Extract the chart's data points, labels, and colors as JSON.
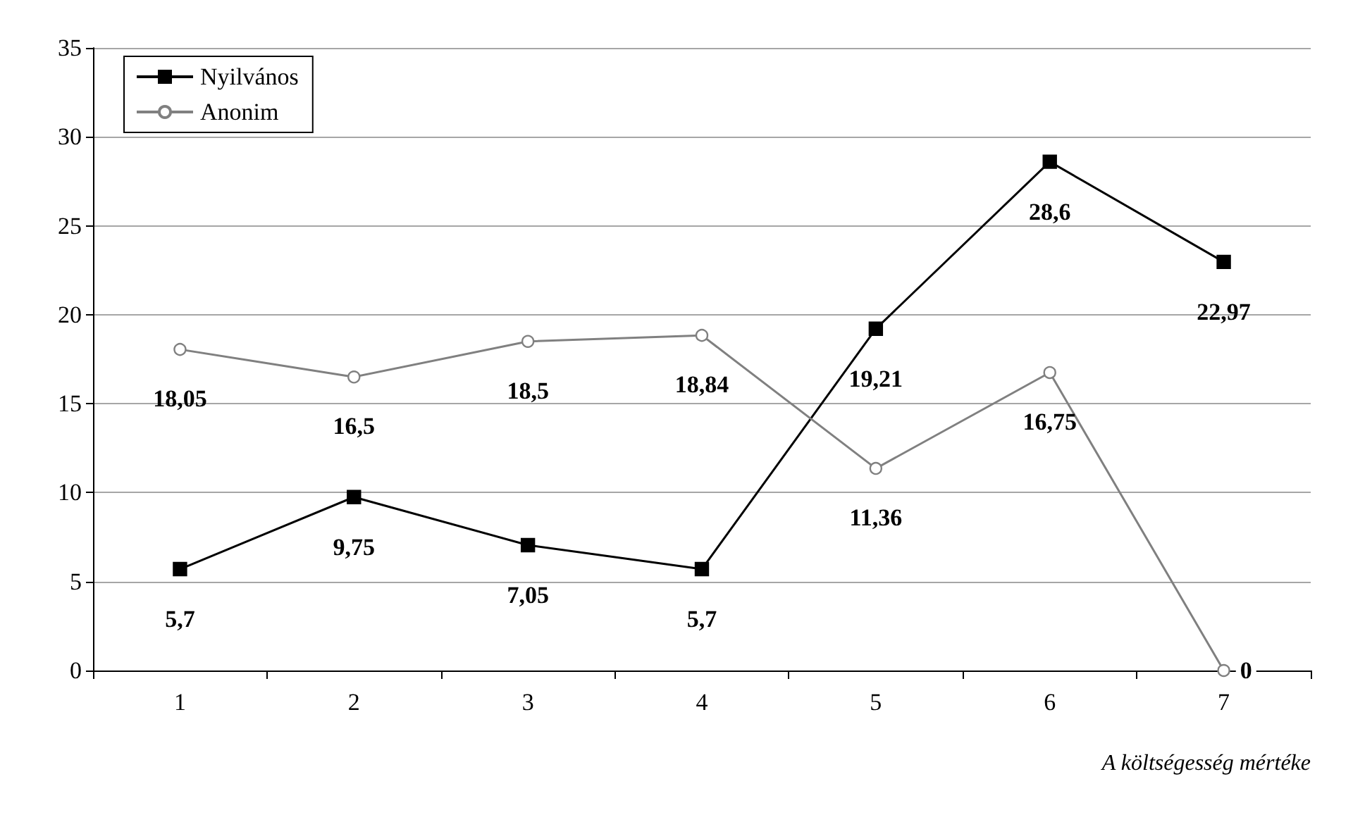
{
  "chart_data": {
    "type": "line",
    "xlabel": "A költségesség mértéke",
    "categories": [
      "1",
      "2",
      "3",
      "4",
      "5",
      "6",
      "7"
    ],
    "series": [
      {
        "name": "Nyilvános",
        "color": "#000000",
        "marker": "square",
        "values": [
          5.7,
          9.75,
          7.05,
          5.7,
          19.21,
          28.6,
          22.97
        ],
        "value_labels": [
          "5,7",
          "9,75",
          "7,05",
          "5,7",
          "19,21",
          "28,6",
          "22,97"
        ]
      },
      {
        "name": "Anonim",
        "color": "#808080",
        "marker": "circle",
        "values": [
          18.05,
          16.5,
          18.5,
          18.84,
          11.36,
          16.75,
          0
        ],
        "value_labels": [
          "18,05",
          "16,5",
          "18,5",
          "18,84",
          "11,36",
          "16,75",
          "0"
        ]
      }
    ],
    "ylim": [
      0,
      35
    ],
    "yticks": [
      0,
      5,
      10,
      15,
      20,
      25,
      30,
      35
    ],
    "grid": "y",
    "legend": "top left"
  }
}
